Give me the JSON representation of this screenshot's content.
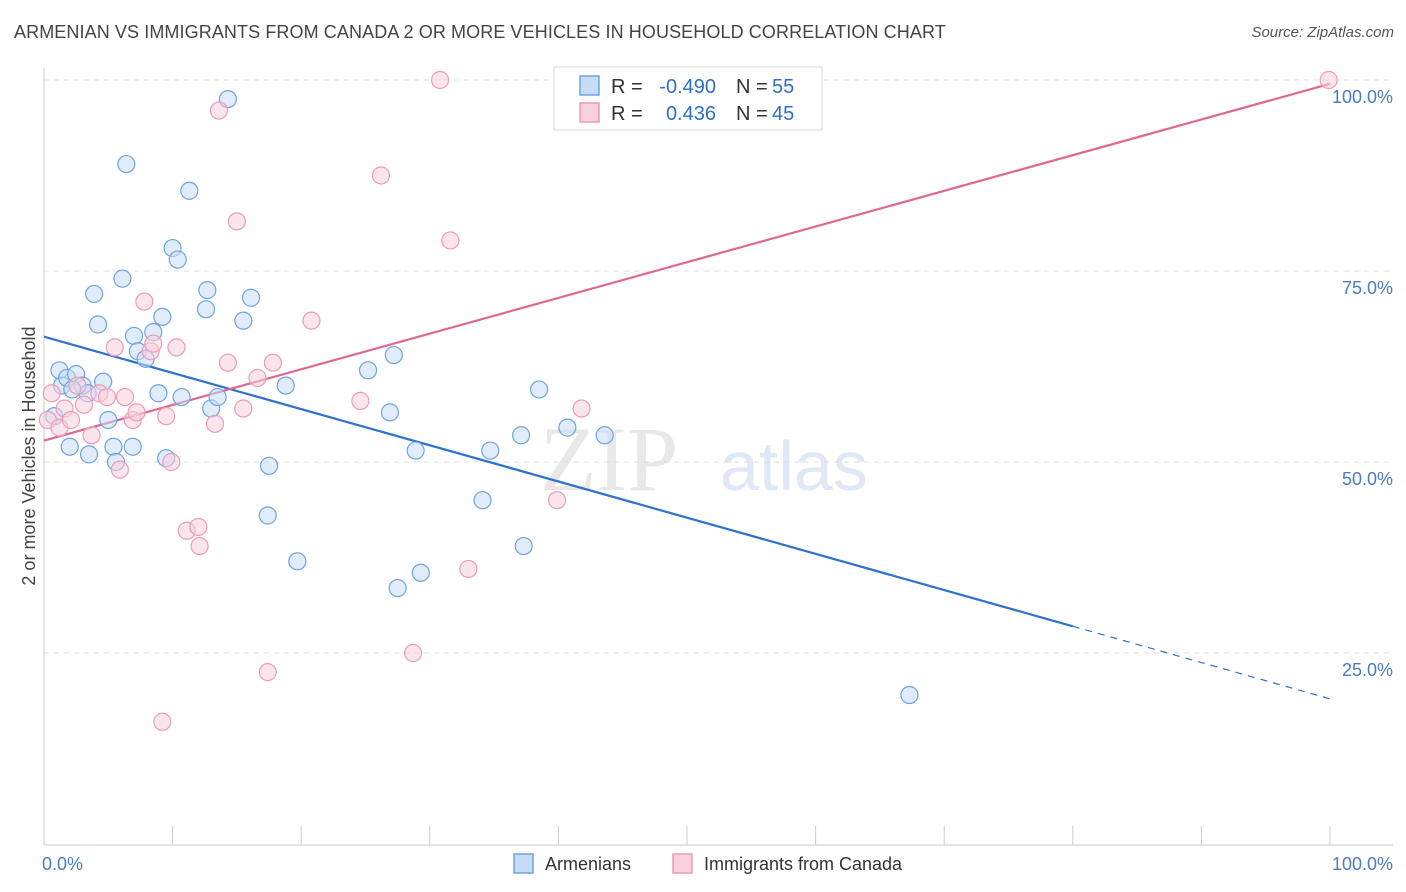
{
  "title": "ARMENIAN VS IMMIGRANTS FROM CANADA 2 OR MORE VEHICLES IN HOUSEHOLD CORRELATION CHART",
  "source": "Source: ZipAtlas.com",
  "watermark": {
    "zip": "ZIP",
    "atlas": "atlas"
  },
  "chart_data": {
    "type": "scatter",
    "title": "ARMENIAN VS IMMIGRANTS FROM CANADA 2 OR MORE VEHICLES IN HOUSEHOLD CORRELATION CHART",
    "xlabel": "",
    "ylabel": "2 or more Vehicles in Household",
    "xlim": [
      0,
      1.0
    ],
    "ylim": [
      0.0,
      1.03
    ],
    "x_tick_labels": {
      "left": "0.0%",
      "right": "100.0%"
    },
    "y_ticks": [
      {
        "value": 0.25,
        "label": "25.0%"
      },
      {
        "value": 0.5,
        "label": "50.0%"
      },
      {
        "value": 0.75,
        "label": "75.0%"
      },
      {
        "value": 1.0,
        "label": "100.0%"
      }
    ],
    "grid": "horizontal dashed",
    "legend_position": "top-center",
    "series": [
      {
        "name": "Armenians",
        "color": "#6fa3e0",
        "fill": "#c7dcf4",
        "line_color": "#2f72cc",
        "R": "-0.490",
        "N": "55",
        "trend": {
          "x0": 0.0,
          "y0": 0.664,
          "x1": 0.8,
          "y1": 0.285,
          "dash_x1": 1.0,
          "dash_y1": 0.19
        },
        "points": [
          [
            0.012,
            0.62
          ],
          [
            0.014,
            0.6
          ],
          [
            0.018,
            0.61
          ],
          [
            0.02,
            0.52
          ],
          [
            0.025,
            0.615
          ],
          [
            0.03,
            0.6
          ],
          [
            0.034,
            0.59
          ],
          [
            0.035,
            0.51
          ],
          [
            0.039,
            0.72
          ],
          [
            0.042,
            0.68
          ],
          [
            0.046,
            0.605
          ],
          [
            0.05,
            0.555
          ],
          [
            0.054,
            0.52
          ],
          [
            0.056,
            0.5
          ],
          [
            0.061,
            0.74
          ],
          [
            0.064,
            0.89
          ],
          [
            0.069,
            0.52
          ],
          [
            0.07,
            0.665
          ],
          [
            0.073,
            0.645
          ],
          [
            0.079,
            0.635
          ],
          [
            0.085,
            0.67
          ],
          [
            0.089,
            0.59
          ],
          [
            0.092,
            0.69
          ],
          [
            0.095,
            0.505
          ],
          [
            0.1,
            0.78
          ],
          [
            0.104,
            0.765
          ],
          [
            0.107,
            0.585
          ],
          [
            0.113,
            0.855
          ],
          [
            0.126,
            0.7
          ],
          [
            0.127,
            0.725
          ],
          [
            0.13,
            0.57
          ],
          [
            0.135,
            0.585
          ],
          [
            0.143,
            0.975
          ],
          [
            0.155,
            0.685
          ],
          [
            0.161,
            0.715
          ],
          [
            0.175,
            0.495
          ],
          [
            0.174,
            0.43
          ],
          [
            0.188,
            0.6
          ],
          [
            0.197,
            0.37
          ],
          [
            0.252,
            0.62
          ],
          [
            0.269,
            0.565
          ],
          [
            0.272,
            0.64
          ],
          [
            0.275,
            0.335
          ],
          [
            0.289,
            0.515
          ],
          [
            0.293,
            0.355
          ],
          [
            0.341,
            0.45
          ],
          [
            0.347,
            0.515
          ],
          [
            0.371,
            0.535
          ],
          [
            0.373,
            0.39
          ],
          [
            0.385,
            0.595
          ],
          [
            0.407,
            0.545
          ],
          [
            0.436,
            0.535
          ],
          [
            0.673,
            0.195
          ],
          [
            0.008,
            0.56
          ],
          [
            0.022,
            0.595
          ]
        ]
      },
      {
        "name": "Immigrants from Canada",
        "color": "#ee9ab8",
        "fill": "#f8cfdd",
        "line_color": "#e06890",
        "R": "0.436",
        "N": "45",
        "trend": {
          "x0": 0.0,
          "y0": 0.528,
          "x1": 1.0,
          "y1": 0.995
        },
        "points": [
          [
            0.003,
            0.555
          ],
          [
            0.006,
            0.59
          ],
          [
            0.012,
            0.545
          ],
          [
            0.016,
            0.57
          ],
          [
            0.021,
            0.555
          ],
          [
            0.026,
            0.6
          ],
          [
            0.031,
            0.575
          ],
          [
            0.037,
            0.535
          ],
          [
            0.043,
            0.59
          ],
          [
            0.049,
            0.585
          ],
          [
            0.055,
            0.65
          ],
          [
            0.059,
            0.49
          ],
          [
            0.063,
            0.585
          ],
          [
            0.069,
            0.555
          ],
          [
            0.072,
            0.565
          ],
          [
            0.078,
            0.71
          ],
          [
            0.083,
            0.645
          ],
          [
            0.085,
            0.655
          ],
          [
            0.092,
            0.16
          ],
          [
            0.095,
            0.56
          ],
          [
            0.099,
            0.5
          ],
          [
            0.103,
            0.65
          ],
          [
            0.111,
            0.41
          ],
          [
            0.121,
            0.39
          ],
          [
            0.12,
            0.415
          ],
          [
            0.133,
            0.55
          ],
          [
            0.136,
            0.96
          ],
          [
            0.143,
            0.63
          ],
          [
            0.15,
            0.815
          ],
          [
            0.155,
            0.57
          ],
          [
            0.166,
            0.61
          ],
          [
            0.174,
            0.225
          ],
          [
            0.178,
            0.63
          ],
          [
            0.208,
            0.685
          ],
          [
            0.246,
            0.58
          ],
          [
            0.262,
            0.875
          ],
          [
            0.287,
            0.25
          ],
          [
            0.308,
            1.0
          ],
          [
            0.316,
            0.79
          ],
          [
            0.33,
            0.36
          ],
          [
            0.399,
            0.45
          ],
          [
            0.418,
            0.57
          ],
          [
            0.475,
            1.0
          ],
          [
            0.49,
            0.995
          ],
          [
            0.999,
            1.0
          ]
        ]
      }
    ]
  }
}
